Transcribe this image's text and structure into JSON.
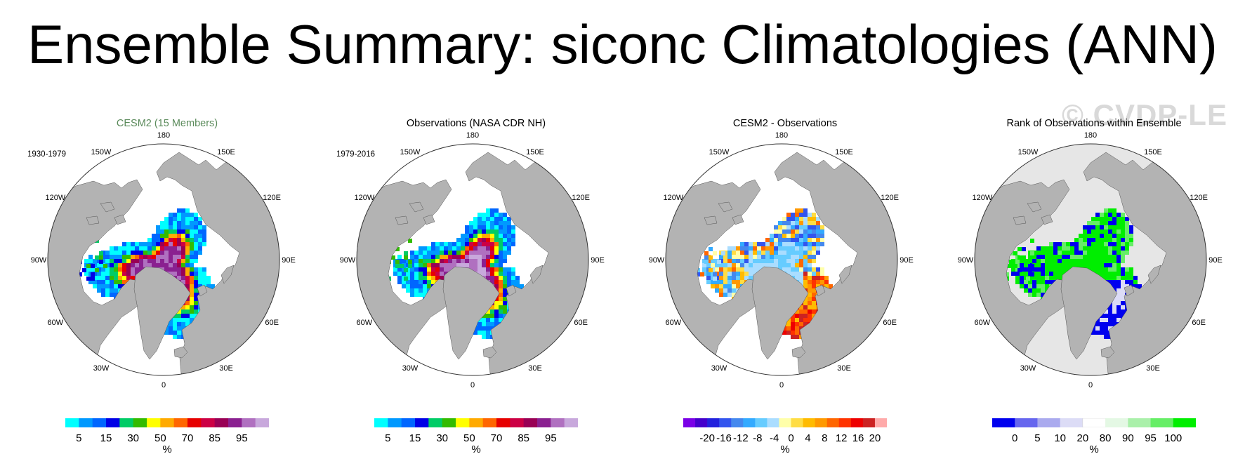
{
  "title": "Ensemble Summary: siconc Climatologies (ANN)",
  "watermark": "© CVDP-LE",
  "lon_labels": [
    "180",
    "150E",
    "120E",
    "90E",
    "60E",
    "30E",
    "0",
    "30W",
    "60W",
    "90W",
    "120W",
    "150W"
  ],
  "colors": {
    "land": "#b3b3b3",
    "ocean": "#ffffff",
    "title_green": "#5a8a5a"
  },
  "panels": [
    {
      "title": "CESM2 (15 Members)",
      "period": "1930-1979",
      "unit": "%",
      "colorbar": [
        "#00ffff",
        "#0099ff",
        "#0066ff",
        "#0000e6",
        "#00cc66",
        "#33bb00",
        "#ffff00",
        "#ffaa00",
        "#ff6600",
        "#e60000",
        "#cc0044",
        "#990055",
        "#8a2090",
        "#b070c0",
        "#c8a8dc"
      ],
      "ticks": [
        "5",
        "15",
        "30",
        "50",
        "70",
        "85",
        "95"
      ],
      "field": "conc_model"
    },
    {
      "title": "Observations (NASA CDR NH)",
      "period": "1979-2016",
      "unit": "%",
      "colorbar": [
        "#00ffff",
        "#0099ff",
        "#0066ff",
        "#0000e6",
        "#00cc66",
        "#33bb00",
        "#ffff00",
        "#ffaa00",
        "#ff6600",
        "#e60000",
        "#cc0044",
        "#990055",
        "#8a2090",
        "#b070c0",
        "#c8a8dc"
      ],
      "ticks": [
        "5",
        "15",
        "30",
        "50",
        "70",
        "85",
        "95"
      ],
      "field": "conc_obs"
    },
    {
      "title": "CESM2 - Observations",
      "period": "",
      "unit": "%",
      "colorbar": [
        "#7a00e6",
        "#4400cc",
        "#2222dd",
        "#3355ee",
        "#4488ee",
        "#33aaff",
        "#66ccff",
        "#aaddff",
        "#ffffaa",
        "#ffdd44",
        "#ffbb00",
        "#ff9900",
        "#ff6600",
        "#ff3300",
        "#ee0000",
        "#cc2222",
        "#ffaaaa"
      ],
      "ticks": [
        "-20",
        "-16",
        "-12",
        "-8",
        "-4",
        "0",
        "4",
        "8",
        "12",
        "16",
        "20"
      ],
      "field": "diff"
    },
    {
      "title": "Rank of Observations within Ensemble",
      "period": "",
      "unit": "%",
      "colorbar": [
        "#0000ee",
        "#6666ee",
        "#aaaaee",
        "#dcdcf6",
        "#ffffff",
        "#e4f8e4",
        "#aaf0aa",
        "#66ee66",
        "#00ee00"
      ],
      "ticks": [
        "0",
        "5",
        "10",
        "20",
        "80",
        "90",
        "95",
        "100"
      ],
      "field": "rank"
    }
  ]
}
